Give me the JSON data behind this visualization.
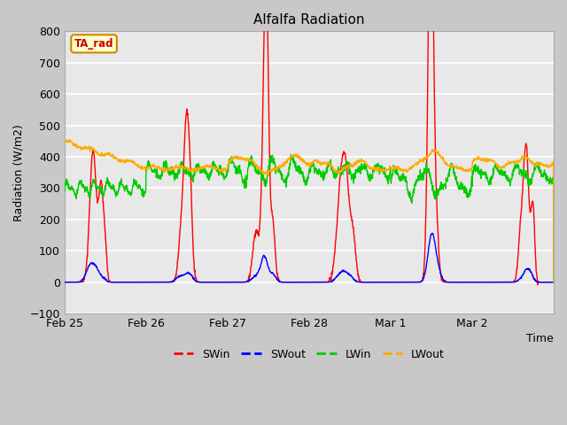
{
  "title": "Alfalfa Radiation",
  "ylabel": "Radiation (W/m2)",
  "xlabel": "Time",
  "ylim": [
    -100,
    800
  ],
  "xlim": [
    0,
    6
  ],
  "xtick_pos": [
    0,
    1,
    2,
    3,
    4,
    5
  ],
  "xtick_labels": [
    "Feb 25",
    "Feb 26",
    "Feb 27",
    "Feb 28",
    "Mar 1",
    "Mar 2"
  ],
  "ytick_vals": [
    -100,
    0,
    100,
    200,
    300,
    400,
    500,
    600,
    700,
    800
  ],
  "fig_bg": "#c8c8c8",
  "ax_bg": "#e8e8e8",
  "grid_color": "#ffffff",
  "legend_labels": [
    "SWin",
    "SWout",
    "LWin",
    "LWout"
  ],
  "legend_colors": [
    "#ff0000",
    "#0000ff",
    "#00cc00",
    "#ffaa00"
  ],
  "line_width": 1.0,
  "annotation_text": "TA_rad",
  "annotation_bg": "#ffffcc",
  "annotation_border": "#cc8800",
  "annotation_text_color": "#cc0000",
  "title_fontsize": 11,
  "label_fontsize": 9,
  "tick_fontsize": 9
}
